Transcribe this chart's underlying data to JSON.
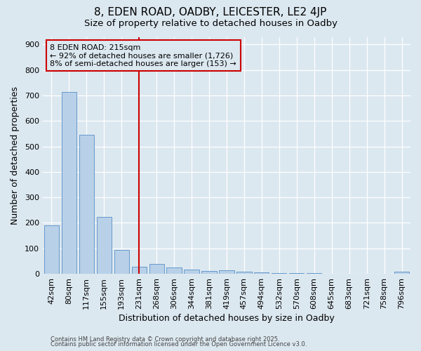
{
  "title": "8, EDEN ROAD, OADBY, LEICESTER, LE2 4JP",
  "subtitle": "Size of property relative to detached houses in Oadby",
  "xlabel": "Distribution of detached houses by size in Oadby",
  "ylabel": "Number of detached properties",
  "categories": [
    "42sqm",
    "80sqm",
    "117sqm",
    "155sqm",
    "193sqm",
    "231sqm",
    "268sqm",
    "306sqm",
    "344sqm",
    "381sqm",
    "419sqm",
    "457sqm",
    "494sqm",
    "532sqm",
    "570sqm",
    "608sqm",
    "645sqm",
    "683sqm",
    "721sqm",
    "758sqm",
    "796sqm"
  ],
  "values": [
    190,
    714,
    547,
    224,
    93,
    27,
    38,
    25,
    16,
    12,
    13,
    8,
    5,
    4,
    3,
    2,
    1,
    1,
    0,
    0,
    8
  ],
  "bar_color": "#b8d0e8",
  "bar_edge_color": "#6699cc",
  "bg_color": "#dce8f0",
  "grid_color": "#ffffff",
  "vline_x": 5.0,
  "vline_color": "#cc0000",
  "annotation_line1": "8 EDEN ROAD: 215sqm",
  "annotation_line2": "← 92% of detached houses are smaller (1,726)",
  "annotation_line3": "8% of semi-detached houses are larger (153) →",
  "annotation_box_color": "#cc0000",
  "footer1": "Contains HM Land Registry data © Crown copyright and database right 2025.",
  "footer2": "Contains public sector information licensed under the Open Government Licence v3.0.",
  "ylim": [
    0,
    930
  ],
  "yticks": [
    0,
    100,
    200,
    300,
    400,
    500,
    600,
    700,
    800,
    900
  ],
  "title_fontsize": 11,
  "subtitle_fontsize": 9.5,
  "tick_fontsize": 8,
  "xlabel_fontsize": 9,
  "ylabel_fontsize": 9,
  "footer_fontsize": 6,
  "annot_fontsize": 8
}
